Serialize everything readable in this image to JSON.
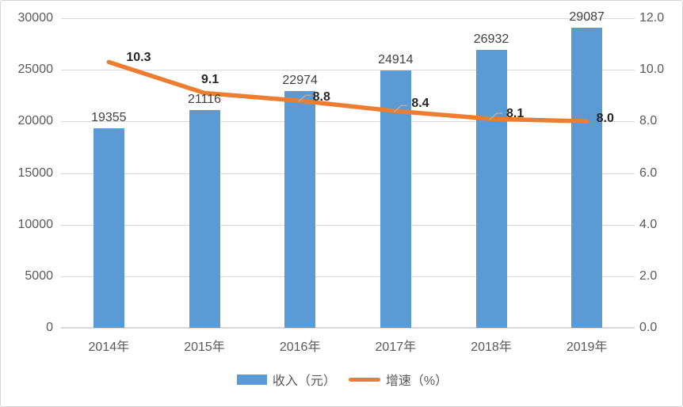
{
  "chart_data": {
    "type": "bar",
    "subtype": "bar-line-combo",
    "title": "",
    "categories": [
      "2014年",
      "2015年",
      "2016年",
      "2017年",
      "2018年",
      "2019年"
    ],
    "series": [
      {
        "name": "收入（元）",
        "type": "bar",
        "axis": "left",
        "values": [
          19355,
          21116,
          22974,
          24914,
          26932,
          29087
        ],
        "data_labels": [
          "19355",
          "21116",
          "22974",
          "24914",
          "26932",
          "29087"
        ]
      },
      {
        "name": "增速（%）",
        "type": "line",
        "axis": "right",
        "values": [
          10.3,
          9.1,
          8.8,
          8.4,
          8.1,
          8.0
        ],
        "data_labels": [
          "10.3",
          "9.1",
          "8.8",
          "8.4",
          "8.1",
          "8.0"
        ]
      }
    ],
    "left_axis": {
      "min": 0,
      "max": 30000,
      "tick_values": [
        0,
        5000,
        10000,
        15000,
        20000,
        25000,
        30000
      ],
      "tick_labels": [
        "0",
        "5000",
        "10000",
        "15000",
        "20000",
        "25000",
        "30000"
      ]
    },
    "right_axis": {
      "min": 0,
      "max": 12,
      "tick_values": [
        0,
        2,
        4,
        6,
        8,
        10,
        12
      ],
      "tick_labels": [
        "0.0",
        "2.0",
        "4.0",
        "6.0",
        "8.0",
        "10.0",
        "12.0"
      ]
    },
    "grid": true,
    "legend_position": "bottom",
    "legend": [
      {
        "label": "收入（元）",
        "swatch": "bar"
      },
      {
        "label": "增速（%）",
        "swatch": "line"
      }
    ]
  },
  "colors": {
    "bar": "#5B9BD5",
    "line": "#ED7D31",
    "grid": "#D9D9D9",
    "axis_text": "#595959",
    "bar_label_text": "#404040",
    "line_label_text": "#262626",
    "leader": "#AFABAB",
    "border": "#D7D7D7",
    "background": "#FFFFFF"
  }
}
